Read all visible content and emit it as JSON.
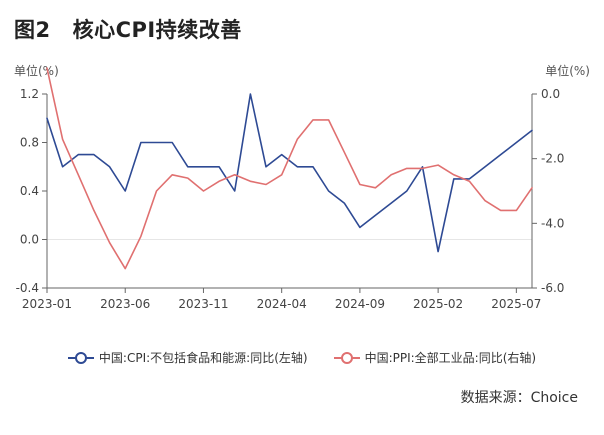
{
  "title": {
    "label": "图2",
    "text": "核心CPI持续改善"
  },
  "units": {
    "left": "单位(%)",
    "right": "单位(%)"
  },
  "source": "数据来源：Choice",
  "colors": {
    "cpi": "#2e4a94",
    "ppi": "#e07070",
    "axis": "#666666",
    "grid": "#f0f0f0"
  },
  "chart_data": {
    "type": "line",
    "title": "核心CPI持续改善",
    "x_tick_labels": [
      "2023-01",
      "2023-06",
      "2023-11",
      "2024-04",
      "2024-09",
      "2025-02",
      "2025-07"
    ],
    "x": [
      "2023-01",
      "2023-02",
      "2023-03",
      "2023-04",
      "2023-05",
      "2023-06",
      "2023-07",
      "2023-08",
      "2023-09",
      "2023-10",
      "2023-11",
      "2023-12",
      "2024-01",
      "2024-02",
      "2024-03",
      "2024-04",
      "2024-05",
      "2024-06",
      "2024-07",
      "2024-08",
      "2024-09",
      "2024-10",
      "2024-11",
      "2024-12",
      "2025-01",
      "2025-02",
      "2025-03",
      "2025-04",
      "2025-05",
      "2025-06",
      "2025-07",
      "2025-08"
    ],
    "y_left": {
      "label": "单位(%)",
      "range": [
        -0.4,
        1.2
      ],
      "ticks": [
        -0.4,
        0.0,
        0.4,
        0.8,
        1.2
      ]
    },
    "y_right": {
      "label": "单位(%)",
      "range": [
        -6.0,
        0.0
      ],
      "ticks": [
        -6.0,
        -4.0,
        -2.0,
        0.0
      ]
    },
    "series": [
      {
        "name": "中国:CPI:不包括食品和能源:同比(左轴)",
        "axis": "left",
        "color": "#2e4a94",
        "values": [
          1.0,
          0.6,
          0.7,
          0.7,
          0.6,
          0.4,
          0.8,
          0.8,
          0.8,
          0.6,
          0.6,
          0.6,
          0.4,
          1.2,
          0.6,
          0.7,
          0.6,
          0.6,
          0.4,
          0.3,
          0.1,
          0.2,
          0.3,
          0.4,
          0.6,
          -0.1,
          0.5,
          0.5,
          0.6,
          0.7,
          0.8,
          0.9
        ]
      },
      {
        "name": "中国:PPI:全部工业品:同比(右轴)",
        "axis": "right",
        "color": "#e07070",
        "values": [
          0.8,
          -1.4,
          -2.5,
          -3.6,
          -4.6,
          -5.4,
          -4.4,
          -3.0,
          -2.5,
          -2.6,
          -3.0,
          -2.7,
          -2.5,
          -2.7,
          -2.8,
          -2.5,
          -1.4,
          -0.8,
          -0.8,
          -1.8,
          -2.8,
          -2.9,
          -2.5,
          -2.3,
          -2.3,
          -2.2,
          -2.5,
          -2.7,
          -3.3,
          -3.6,
          -3.6,
          -2.9
        ]
      }
    ],
    "grid": false,
    "legend_position": "bottom-center"
  }
}
